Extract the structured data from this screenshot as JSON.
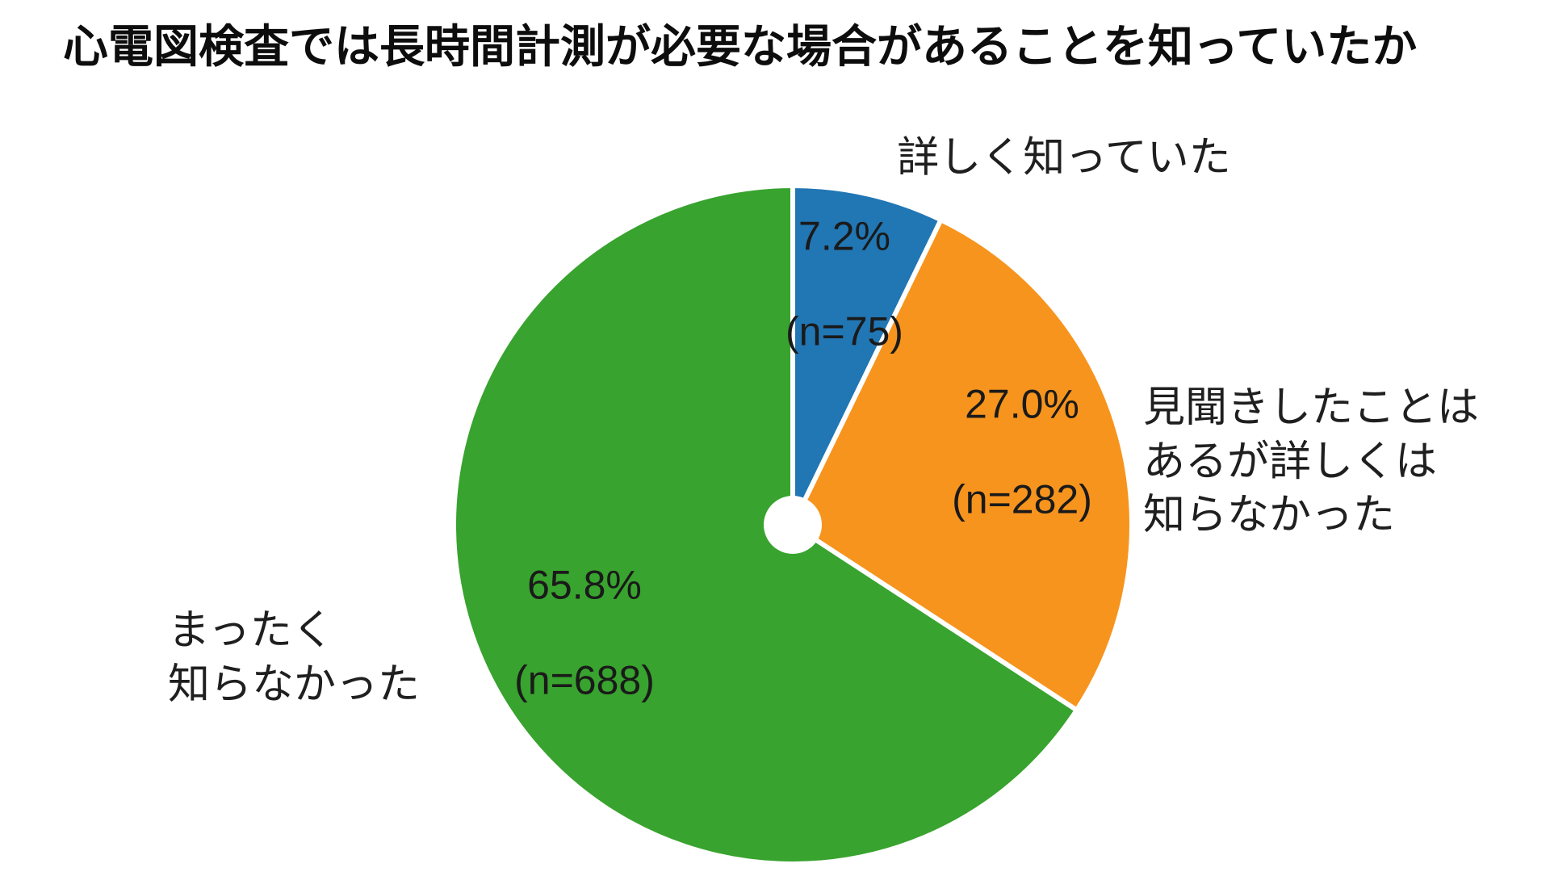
{
  "chart_data": {
    "type": "pie",
    "title": "心電図検査では長時間計測が必要な場合があることを知っていたか",
    "start_angle_deg": -90,
    "direction": "clockwise",
    "legend_position": "outside-labels",
    "hole": "small-white-center",
    "segments": [
      {
        "label": "詳しく知っていた",
        "value_pct": 7.2,
        "n": 75,
        "pct_text": "7.2%",
        "n_text": "(n=75)",
        "color": "#2176b4"
      },
      {
        "label": "見聞きしたことは\nあるが詳しくは\n知らなかった",
        "value_pct": 27.0,
        "n": 282,
        "pct_text": "27.0%",
        "n_text": "(n=282)",
        "color": "#f7941d"
      },
      {
        "label": "まったく\n知らなかった",
        "value_pct": 65.8,
        "n": 688,
        "pct_text": "65.8%",
        "n_text": "(n=688)",
        "color": "#38a32e"
      }
    ]
  }
}
